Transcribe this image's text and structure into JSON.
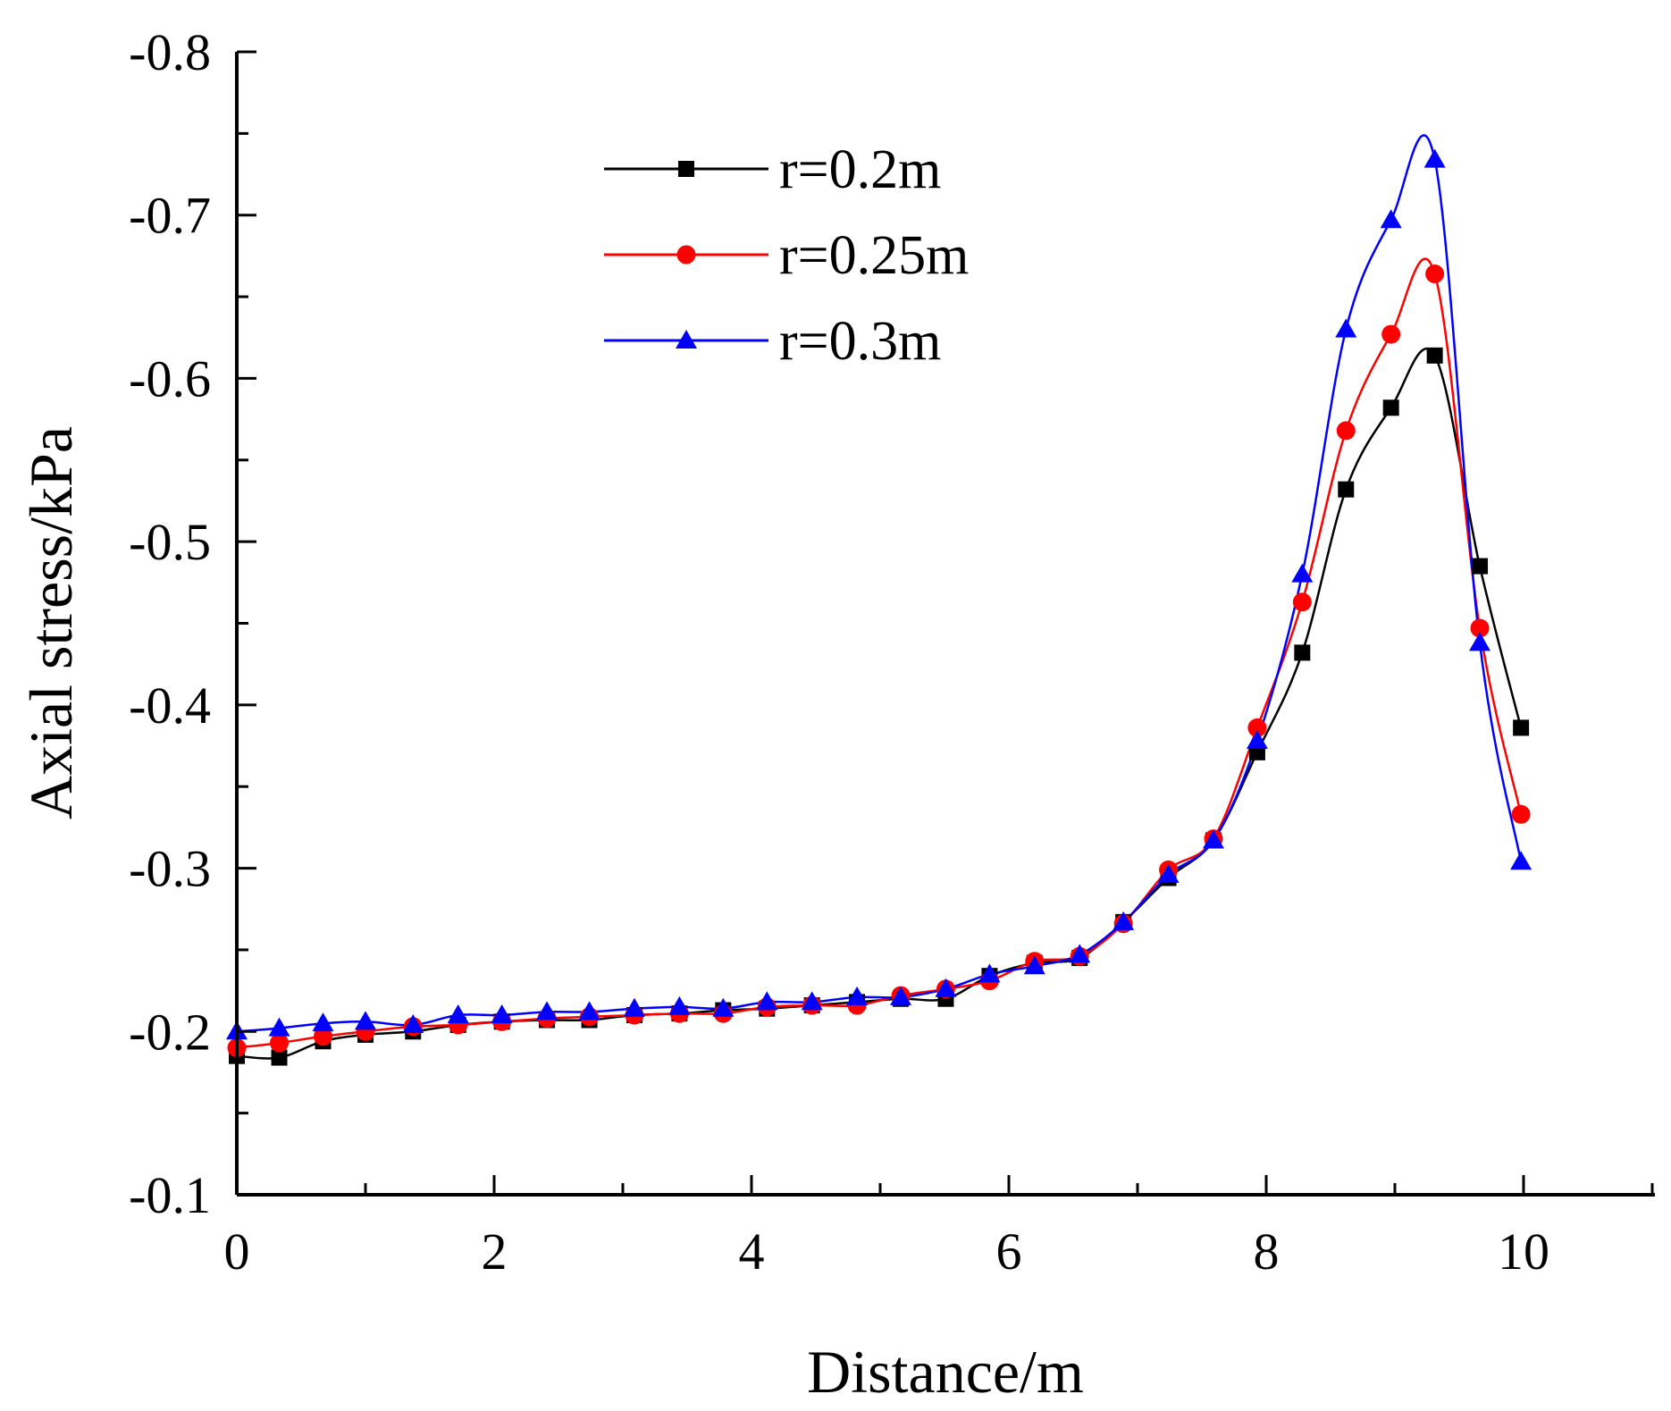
{
  "chart_data": {
    "type": "line",
    "title": "",
    "xlabel": "Distance/m",
    "ylabel": "Axial stress/kPa",
    "xlim": [
      0,
      11
    ],
    "ylim": [
      -0.1,
      -0.8
    ],
    "x_ticks": [
      0,
      2,
      4,
      6,
      8,
      10
    ],
    "x_tick_labels": [
      "0",
      "2",
      "4",
      "6",
      "8",
      "10"
    ],
    "y_ticks": [
      -0.1,
      -0.2,
      -0.3,
      -0.4,
      -0.5,
      -0.6,
      -0.7,
      -0.8
    ],
    "y_tick_labels": [
      "-0.1",
      "-0.2",
      "-0.3",
      "-0.4",
      "-0.5",
      "-0.6",
      "-0.7",
      "-0.8"
    ],
    "grid": false,
    "legend_position": "top-center",
    "series": [
      {
        "name": "r=0.2m",
        "color": "#000000",
        "marker": "square",
        "x": [
          0,
          0.33,
          0.67,
          1.0,
          1.37,
          1.72,
          2.06,
          2.41,
          2.74,
          3.09,
          3.44,
          3.78,
          4.12,
          4.47,
          4.82,
          5.16,
          5.51,
          5.85,
          6.2,
          6.55,
          6.89,
          7.24,
          7.59,
          7.93,
          8.28,
          8.62,
          8.97,
          9.31,
          9.66,
          9.98
        ],
        "y": [
          -0.185,
          -0.184,
          -0.194,
          -0.198,
          -0.2,
          -0.204,
          -0.206,
          -0.207,
          -0.207,
          -0.21,
          -0.211,
          -0.213,
          -0.214,
          -0.216,
          -0.218,
          -0.22,
          -0.22,
          -0.234,
          -0.242,
          -0.245,
          -0.267,
          -0.294,
          -0.317,
          -0.371,
          -0.432,
          -0.532,
          -0.582,
          -0.614,
          -0.485,
          -0.386
        ]
      },
      {
        "name": "r=0.25m",
        "color": "#ff0000",
        "marker": "circle",
        "x": [
          0,
          0.33,
          0.67,
          1.0,
          1.37,
          1.72,
          2.06,
          2.41,
          2.74,
          3.09,
          3.44,
          3.78,
          4.12,
          4.47,
          4.82,
          5.16,
          5.51,
          5.85,
          6.2,
          6.55,
          6.89,
          7.24,
          7.59,
          7.93,
          8.28,
          8.62,
          8.97,
          9.31,
          9.66,
          9.98
        ],
        "y": [
          -0.19,
          -0.193,
          -0.197,
          -0.2,
          -0.203,
          -0.204,
          -0.206,
          -0.208,
          -0.209,
          -0.21,
          -0.211,
          -0.211,
          -0.215,
          -0.216,
          -0.216,
          -0.222,
          -0.226,
          -0.231,
          -0.243,
          -0.246,
          -0.266,
          -0.299,
          -0.318,
          -0.386,
          -0.463,
          -0.568,
          -0.627,
          -0.664,
          -0.447,
          -0.333
        ]
      },
      {
        "name": "r=0.3m",
        "color": "#0000ff",
        "marker": "triangle",
        "x": [
          0,
          0.33,
          0.67,
          1.0,
          1.37,
          1.72,
          2.06,
          2.41,
          2.74,
          3.09,
          3.44,
          3.78,
          4.12,
          4.47,
          4.82,
          5.16,
          5.51,
          5.85,
          6.2,
          6.55,
          6.89,
          7.24,
          7.59,
          7.93,
          8.28,
          8.62,
          8.97,
          9.31,
          9.66,
          9.98
        ],
        "y": [
          -0.2,
          -0.202,
          -0.205,
          -0.206,
          -0.204,
          -0.21,
          -0.21,
          -0.212,
          -0.212,
          -0.214,
          -0.215,
          -0.214,
          -0.218,
          -0.218,
          -0.221,
          -0.221,
          -0.226,
          -0.235,
          -0.24,
          -0.247,
          -0.267,
          -0.296,
          -0.317,
          -0.378,
          -0.48,
          -0.63,
          -0.697,
          -0.734,
          -0.438,
          -0.304
        ]
      }
    ]
  }
}
